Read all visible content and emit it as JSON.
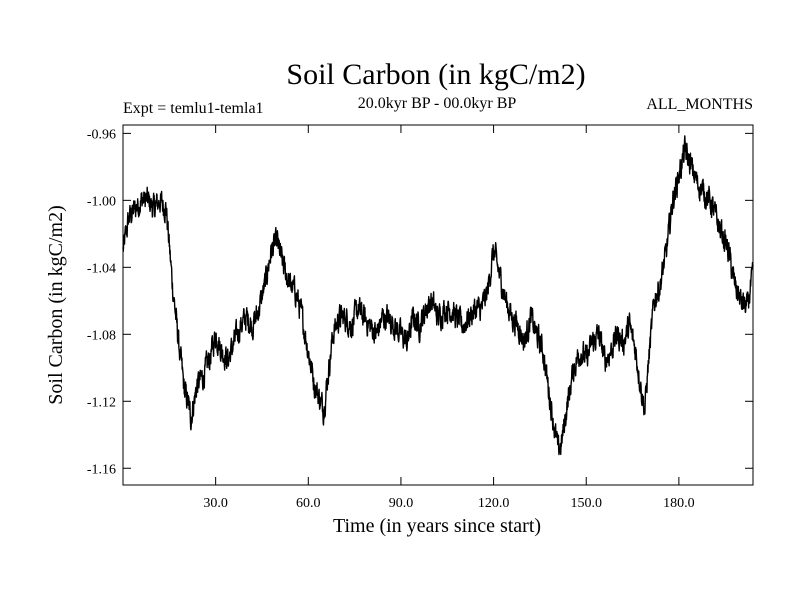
{
  "chart_data": {
    "type": "line",
    "title": "Soil Carbon (in kgC/m2)",
    "subtitle_left": "Expt = temlu1-temla1",
    "subtitle_center": "20.0kyr BP - 00.0kyr BP",
    "subtitle_right": "ALL_MONTHS",
    "xlabel": "Time (in years since start)",
    "ylabel": "Soil Carbon (in kgC/m2)",
    "xlim": [
      0,
      204
    ],
    "ylim": [
      -1.17,
      -0.955
    ],
    "x_ticks": [
      30,
      60,
      90,
      120,
      150,
      180
    ],
    "x_tick_labels": [
      "30.0",
      "60.0",
      "90.0",
      "120.0",
      "150.0",
      "180.0"
    ],
    "y_ticks": [
      -0.96,
      -1.0,
      -1.04,
      -1.08,
      -1.12,
      -1.16
    ],
    "y_tick_labels": [
      "-0.96",
      "-1.00",
      "-1.04",
      "-1.08",
      "-1.12",
      "-1.16"
    ],
    "line_color": "#000000",
    "noise_amplitude": 0.006,
    "samples_per_year": 12,
    "series": [
      {
        "name": "Soil Carbon",
        "x": [
          0,
          2,
          4,
          6,
          8,
          10,
          12,
          14,
          16,
          18,
          19,
          20,
          21,
          22,
          24,
          26,
          28,
          30,
          32,
          34,
          36,
          38,
          40,
          42,
          44,
          46,
          48,
          50,
          52,
          54,
          56,
          58,
          60,
          62,
          64,
          65,
          66,
          68,
          70,
          72,
          74,
          76,
          78,
          80,
          82,
          84,
          86,
          88,
          90,
          92,
          94,
          96,
          98,
          100,
          102,
          104,
          106,
          108,
          110,
          112,
          114,
          116,
          118,
          120,
          122,
          124,
          126,
          128,
          130,
          132,
          134,
          136,
          138,
          140,
          141,
          142,
          144,
          146,
          148,
          150,
          152,
          154,
          156,
          158,
          160,
          162,
          164,
          166,
          168,
          169,
          170,
          172,
          174,
          176,
          178,
          180,
          182,
          184,
          186,
          188,
          190,
          192,
          194,
          196,
          198,
          200,
          202,
          204
        ],
        "y": [
          -1.03,
          -1.01,
          -1.005,
          -1.0,
          -1.0,
          -1.005,
          -1.0,
          -1.005,
          -1.05,
          -1.085,
          -1.1,
          -1.115,
          -1.12,
          -1.13,
          -1.11,
          -1.105,
          -1.095,
          -1.08,
          -1.09,
          -1.095,
          -1.085,
          -1.075,
          -1.07,
          -1.075,
          -1.065,
          -1.05,
          -1.03,
          -1.025,
          -1.04,
          -1.05,
          -1.055,
          -1.07,
          -1.09,
          -1.11,
          -1.12,
          -1.125,
          -1.11,
          -1.08,
          -1.07,
          -1.07,
          -1.075,
          -1.065,
          -1.07,
          -1.075,
          -1.08,
          -1.07,
          -1.07,
          -1.075,
          -1.08,
          -1.085,
          -1.07,
          -1.075,
          -1.065,
          -1.06,
          -1.07,
          -1.065,
          -1.065,
          -1.07,
          -1.075,
          -1.07,
          -1.065,
          -1.065,
          -1.055,
          -1.03,
          -1.045,
          -1.06,
          -1.07,
          -1.075,
          -1.085,
          -1.07,
          -1.08,
          -1.09,
          -1.115,
          -1.14,
          -1.15,
          -1.145,
          -1.12,
          -1.1,
          -1.09,
          -1.095,
          -1.085,
          -1.08,
          -1.095,
          -1.09,
          -1.08,
          -1.085,
          -1.075,
          -1.09,
          -1.115,
          -1.125,
          -1.1,
          -1.06,
          -1.05,
          -1.03,
          -1.0,
          -0.985,
          -0.97,
          -0.98,
          -0.99,
          -0.995,
          -1.0,
          -1.01,
          -1.02,
          -1.03,
          -1.05,
          -1.06,
          -1.065,
          -1.045
        ]
      }
    ]
  }
}
